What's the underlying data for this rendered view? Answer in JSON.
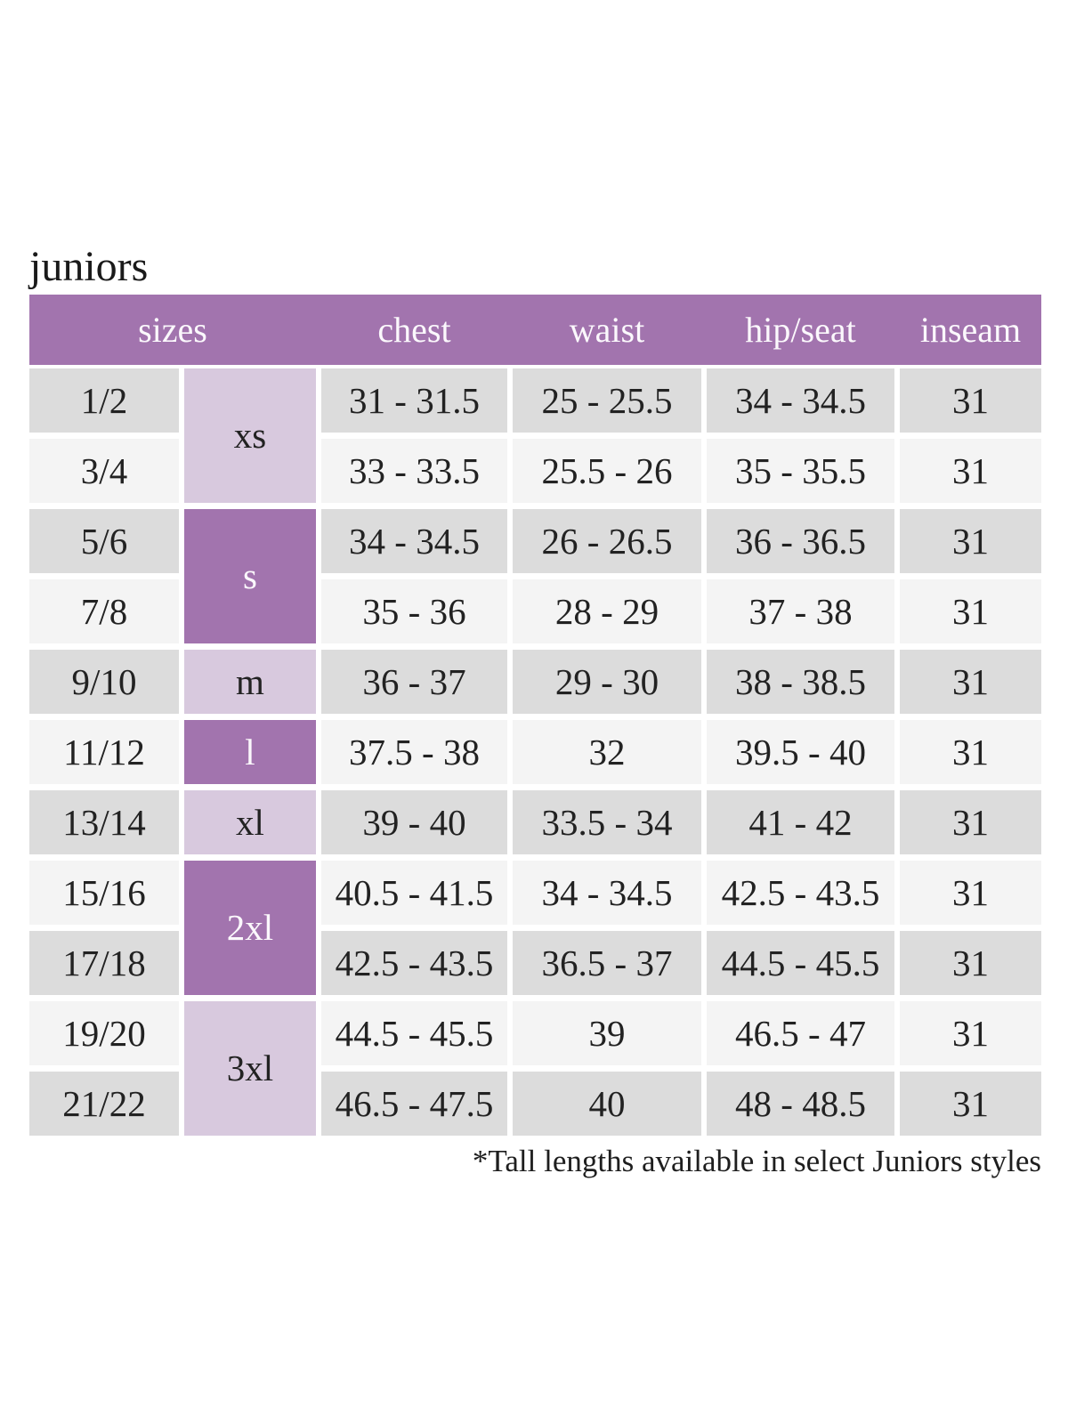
{
  "page": {
    "title": "juniors",
    "footnote": "*Tall lengths available in select Juniors styles"
  },
  "colors": {
    "header_purple": "#a274ae",
    "letter_light_purple": "#d8c9de",
    "row_gray": "#dcdcdc",
    "row_light_gray": "#f4f4f4",
    "header_text": "#fbf8fc",
    "body_text": "#222222"
  },
  "table": {
    "columns": {
      "sizes": "sizes",
      "chest": "chest",
      "waist": "waist",
      "hip_seat": "hip/seat",
      "inseam": "inseam"
    },
    "letters": {
      "xs": "xs",
      "s": "s",
      "m": "m",
      "l": "l",
      "xl": "xl",
      "xxl": "2xl",
      "xxxl": "3xl"
    },
    "rows": [
      {
        "size": "1/2",
        "letter": "xs",
        "chest": "31 - 31.5",
        "waist": "25 - 25.5",
        "hip_seat": "34 - 34.5",
        "inseam": "31"
      },
      {
        "size": "3/4",
        "letter": "xs",
        "chest": "33 - 33.5",
        "waist": "25.5 - 26",
        "hip_seat": "35 - 35.5",
        "inseam": "31"
      },
      {
        "size": "5/6",
        "letter": "s",
        "chest": "34 - 34.5",
        "waist": "26 - 26.5",
        "hip_seat": "36 - 36.5",
        "inseam": "31"
      },
      {
        "size": "7/8",
        "letter": "s",
        "chest": "35 - 36",
        "waist": "28 - 29",
        "hip_seat": "37 - 38",
        "inseam": "31"
      },
      {
        "size": "9/10",
        "letter": "m",
        "chest": "36 - 37",
        "waist": "29 - 30",
        "hip_seat": "38 - 38.5",
        "inseam": "31"
      },
      {
        "size": "11/12",
        "letter": "l",
        "chest": "37.5 - 38",
        "waist": "32",
        "hip_seat": "39.5 - 40",
        "inseam": "31"
      },
      {
        "size": "13/14",
        "letter": "xl",
        "chest": "39 - 40",
        "waist": "33.5 - 34",
        "hip_seat": "41 - 42",
        "inseam": "31"
      },
      {
        "size": "15/16",
        "letter": "2xl",
        "chest": "40.5 - 41.5",
        "waist": "34 - 34.5",
        "hip_seat": "42.5 - 43.5",
        "inseam": "31"
      },
      {
        "size": "17/18",
        "letter": "2xl",
        "chest": "42.5 - 43.5",
        "waist": "36.5 - 37",
        "hip_seat": "44.5 - 45.5",
        "inseam": "31"
      },
      {
        "size": "19/20",
        "letter": "3xl",
        "chest": "44.5 - 45.5",
        "waist": "39",
        "hip_seat": "46.5 - 47",
        "inseam": "31"
      },
      {
        "size": "21/22",
        "letter": "3xl",
        "chest": "46.5 - 47.5",
        "waist": "40",
        "hip_seat": "48 - 48.5",
        "inseam": "31"
      }
    ]
  }
}
